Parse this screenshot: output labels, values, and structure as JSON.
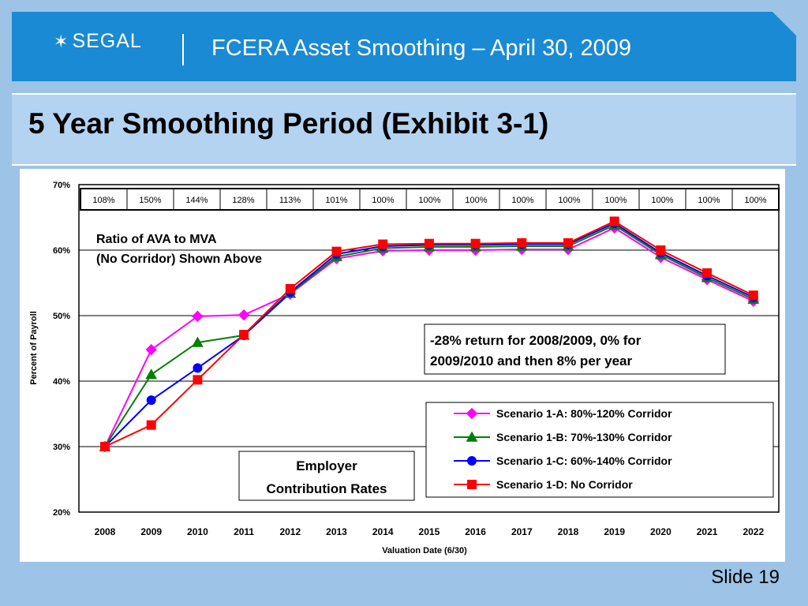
{
  "header": {
    "logo_text": "SEGAL",
    "title": "FCERA Asset Smoothing – April 30, 2009"
  },
  "slide": {
    "title": "5 Year Smoothing Period (Exhibit 3-1)",
    "number_label": "Slide 19"
  },
  "chart_data": {
    "type": "line",
    "x": [
      "2008",
      "2009",
      "2010",
      "2011",
      "2012",
      "2013",
      "2014",
      "2015",
      "2016",
      "2017",
      "2018",
      "2019",
      "2020",
      "2021",
      "2022"
    ],
    "xlabel": "Valuation Date (6/30)",
    "ylabel": "Percent of Payroll",
    "ylim": [
      20,
      70
    ],
    "yticks": [
      "20%",
      "30%",
      "40%",
      "50%",
      "60%",
      "70%"
    ],
    "grid": true,
    "legend_position": "bottom-right",
    "ratio_row": [
      "108%",
      "150%",
      "144%",
      "128%",
      "113%",
      "101%",
      "100%",
      "100%",
      "100%",
      "100%",
      "100%",
      "100%",
      "100%",
      "100%",
      "100%"
    ],
    "annotations": {
      "ratio_note_line1": "Ratio of AVA to MVA",
      "ratio_note_line2": "(No Corridor) Shown Above",
      "return_note_line1": "-28% return for 2008/2009, 0% for",
      "return_note_line2": "2009/2010 and then 8% per year",
      "rates_note_line1": "Employer",
      "rates_note_line2": "Contribution Rates"
    },
    "series": [
      {
        "name": "Scenario 1-A: 80%-120% Corridor",
        "color": "#ff00ff",
        "marker": "diamond",
        "values": [
          30.0,
          44.8,
          49.9,
          50.1,
          53.3,
          58.7,
          59.9,
          60.0,
          60.0,
          60.1,
          60.1,
          63.4,
          58.9,
          55.5,
          52.2
        ]
      },
      {
        "name": "Scenario 1-B: 70%-130% Corridor",
        "color": "#008000",
        "marker": "triangle",
        "values": [
          30.0,
          41.0,
          45.9,
          47.0,
          53.4,
          59.0,
          60.3,
          60.5,
          60.5,
          60.6,
          60.6,
          63.8,
          59.3,
          55.8,
          52.5
        ]
      },
      {
        "name": "Scenario 1-C: 60%-140% Corridor",
        "color": "#0000ff",
        "marker": "circle",
        "values": [
          30.0,
          37.1,
          42.0,
          47.0,
          53.6,
          59.4,
          60.6,
          60.8,
          60.8,
          60.9,
          60.9,
          64.1,
          59.6,
          56.1,
          52.8
        ]
      },
      {
        "name": "Scenario 1-D: No Corridor",
        "color": "#ff0000",
        "marker": "square",
        "values": [
          30.0,
          33.3,
          40.2,
          47.1,
          54.1,
          59.8,
          60.9,
          61.0,
          61.0,
          61.1,
          61.1,
          64.4,
          60.0,
          56.5,
          53.1
        ]
      }
    ]
  }
}
